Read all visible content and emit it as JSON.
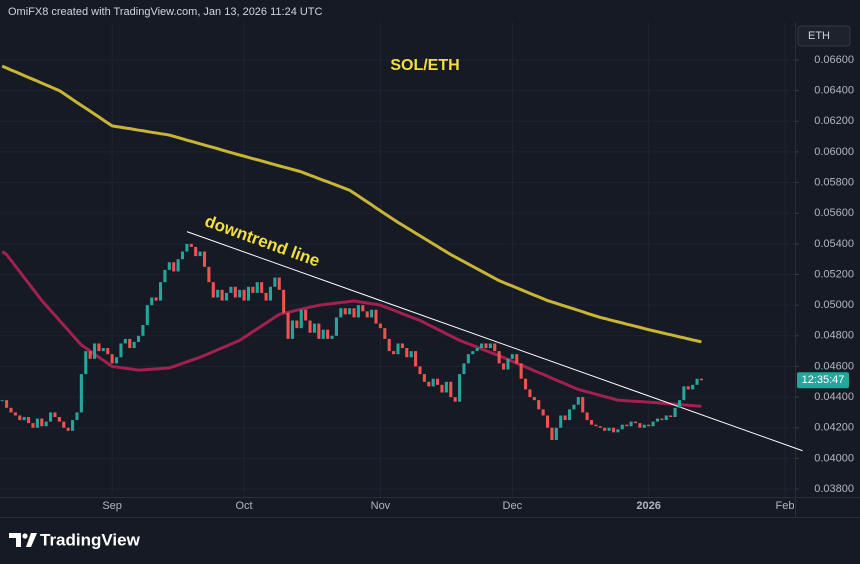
{
  "header": {
    "credit": "OmiFX8 created with TradingView.com, Jan 13, 2026 11:24 UTC",
    "logo": "TradingView"
  },
  "chart_data": {
    "type": "candlestick",
    "title": "SOL/ETH",
    "currency": "ETH",
    "countdown": "12:35:47",
    "up_color": "#26a69a",
    "down_color": "#ef5350",
    "grid": true,
    "categories": [
      null,
      null,
      null,
      null,
      null,
      null,
      null,
      null,
      null,
      null,
      null,
      null,
      null,
      null,
      null,
      null,
      null,
      null,
      null,
      null,
      null,
      null,
      null,
      null,
      null,
      "Sep",
      null,
      null,
      null,
      null,
      null,
      null,
      null,
      null,
      null,
      null,
      null,
      null,
      null,
      null,
      null,
      null,
      null,
      null,
      null,
      null,
      null,
      null,
      null,
      null,
      null,
      null,
      null,
      null,
      null,
      "Oct",
      null,
      null,
      null,
      null,
      null,
      null,
      null,
      null,
      null,
      null,
      null,
      null,
      null,
      null,
      null,
      null,
      null,
      null,
      null,
      null,
      null,
      null,
      null,
      null,
      null,
      null,
      null,
      null,
      null,
      null,
      "Nov",
      null,
      null,
      null,
      null,
      null,
      null,
      null,
      null,
      null,
      null,
      null,
      null,
      null,
      null,
      null,
      null,
      null,
      null,
      null,
      null,
      null,
      null,
      null,
      null,
      null,
      null,
      null,
      null,
      null,
      "Dec",
      null,
      null,
      null,
      null,
      null,
      null,
      null,
      null,
      null,
      null,
      null,
      null,
      null,
      null,
      null,
      null,
      null,
      null,
      null,
      null,
      null,
      null,
      null,
      null,
      null,
      null,
      null,
      null,
      null,
      null,
      "2026",
      null,
      null,
      null,
      null,
      null,
      null,
      null,
      null,
      null,
      null,
      null,
      null,
      null,
      null,
      null,
      null,
      null,
      null,
      null,
      null,
      null,
      null,
      null,
      null,
      null,
      null,
      null,
      null,
      null,
      null,
      "Feb",
      null,
      null
    ],
    "values": [
      0.0438,
      0.0433,
      0.043,
      0.0428,
      0.0425,
      0.0427,
      0.0423,
      0.042,
      0.0426,
      0.0421,
      0.0424,
      0.043,
      0.0427,
      0.0424,
      0.042,
      0.0418,
      0.0425,
      0.043,
      0.0455,
      0.047,
      0.0465,
      0.0475,
      0.047,
      0.0472,
      0.0468,
      0.0462,
      0.0466,
      0.0475,
      0.0478,
      0.0472,
      0.0476,
      0.048,
      0.0487,
      0.05,
      0.0505,
      0.0503,
      0.0515,
      0.0523,
      0.0528,
      0.0522,
      0.053,
      0.0535,
      0.054,
      0.0538,
      0.0532,
      0.0535,
      0.0525,
      0.0515,
      0.0505,
      0.051,
      0.0503,
      0.0508,
      0.0512,
      0.0505,
      0.051,
      0.0503,
      0.0512,
      0.0508,
      0.0515,
      0.0508,
      0.0503,
      0.0512,
      0.0518,
      0.051,
      0.0495,
      0.0478,
      0.049,
      0.0485,
      0.0497,
      0.049,
      0.0482,
      0.0488,
      0.0478,
      0.0484,
      0.0478,
      0.048,
      0.0492,
      0.0498,
      0.0494,
      0.0498,
      0.0492,
      0.05,
      0.0496,
      0.0492,
      0.0497,
      0.0488,
      0.0485,
      0.0478,
      0.047,
      0.0468,
      0.0475,
      0.0472,
      0.0466,
      0.047,
      0.046,
      0.0455,
      0.045,
      0.0447,
      0.0452,
      0.0448,
      0.0443,
      0.045,
      0.044,
      0.0437,
      0.0455,
      0.0462,
      0.0468,
      0.047,
      0.0472,
      0.0475,
      0.0472,
      0.0475,
      0.047,
      0.0462,
      0.0458,
      0.0465,
      0.0468,
      0.0462,
      0.0452,
      0.0445,
      0.044,
      0.0438,
      0.0432,
      0.0428,
      0.042,
      0.0412,
      0.042,
      0.0428,
      0.0425,
      0.0432,
      0.0435,
      0.044,
      0.043,
      0.0425,
      0.0422,
      0.0421,
      0.042,
      0.0418,
      0.042,
      0.0417,
      0.0419,
      0.0422,
      0.0421,
      0.0424,
      0.0423,
      0.042,
      0.0422,
      0.0421,
      0.0424,
      0.0426,
      0.0425,
      0.0428,
      0.0427,
      0.0433,
      0.0438,
      0.0447,
      0.0445,
      0.0448,
      0.0452,
      0.0451,
      null,
      null,
      null,
      null,
      null,
      null,
      null,
      null,
      null,
      null,
      null,
      null,
      null,
      null,
      null,
      null,
      null,
      null,
      null,
      null,
      null
    ],
    "series": [
      {
        "color": "#c9b535",
        "values": [
          0.0656,
          0.06548,
          0.06535,
          0.06523,
          0.06511,
          0.06498,
          0.06486,
          0.06474,
          0.06462,
          0.06449,
          0.06437,
          0.06425,
          0.06412,
          0.064,
          0.06381,
          0.06362,
          0.06342,
          0.06323,
          0.06304,
          0.06285,
          0.06266,
          0.06247,
          0.06228,
          0.06208,
          0.06189,
          0.0617,
          0.06165,
          0.06161,
          0.06156,
          0.06152,
          0.06147,
          0.06142,
          0.06138,
          0.06133,
          0.06128,
          0.06124,
          0.06119,
          0.06115,
          0.0611,
          0.06102,
          0.06094,
          0.06086,
          0.06077,
          0.06069,
          0.06061,
          0.06053,
          0.06045,
          0.06037,
          0.06029,
          0.06021,
          0.06012,
          0.06004,
          0.05996,
          0.05988,
          0.0598,
          0.05972,
          0.05964,
          0.05956,
          0.05949,
          0.05941,
          0.05933,
          0.05925,
          0.05917,
          0.05909,
          0.05901,
          0.05894,
          0.05886,
          0.05878,
          0.0587,
          0.05859,
          0.05848,
          0.05837,
          0.05826,
          0.05815,
          0.05805,
          0.05794,
          0.05783,
          0.05772,
          0.05761,
          0.0575,
          0.05731,
          0.05712,
          0.05693,
          0.05674,
          0.05655,
          0.05635,
          0.05616,
          0.05597,
          0.05578,
          0.05559,
          0.0554,
          0.05523,
          0.05505,
          0.05488,
          0.0547,
          0.05453,
          0.05435,
          0.05418,
          0.054,
          0.05383,
          0.05365,
          0.05348,
          0.0533,
          0.05315,
          0.05299,
          0.05284,
          0.05268,
          0.05253,
          0.05237,
          0.05222,
          0.05206,
          0.05191,
          0.05175,
          0.0516,
          0.05148,
          0.05136,
          0.05125,
          0.05113,
          0.05101,
          0.05089,
          0.05077,
          0.05065,
          0.05054,
          0.05042,
          0.0503,
          0.05021,
          0.05012,
          0.05002,
          0.04993,
          0.04984,
          0.04975,
          0.04966,
          0.04957,
          0.04947,
          0.04938,
          0.04929,
          0.0492,
          0.04913,
          0.04905,
          0.04898,
          0.04891,
          0.04884,
          0.04876,
          0.04869,
          0.04862,
          0.04855,
          0.04847,
          0.0484,
          0.04833,
          0.04827,
          0.0482,
          0.04813,
          0.04807,
          0.048,
          0.04793,
          0.04787,
          0.0478,
          0.04773,
          0.04767,
          0.0476,
          null,
          null,
          null,
          null,
          null,
          null,
          null,
          null,
          null,
          null,
          null,
          null,
          null,
          null,
          null,
          null,
          null,
          null,
          null,
          null,
          null
        ]
      },
      {
        "color": "#a3204f",
        "values": [
          0.0535,
          0.0533,
          0.05293,
          0.05255,
          0.05218,
          0.0518,
          0.05143,
          0.05105,
          0.05068,
          0.0503,
          0.04998,
          0.04966,
          0.04934,
          0.04901,
          0.04869,
          0.04837,
          0.04804,
          0.04772,
          0.0474,
          0.0472,
          0.047,
          0.0468,
          0.0466,
          0.0464,
          0.0462,
          0.046,
          0.04596,
          0.04592,
          0.04588,
          0.04584,
          0.0458,
          0.04576,
          0.04578,
          0.0458,
          0.04582,
          0.04584,
          0.04586,
          0.04588,
          0.0459,
          0.046,
          0.0461,
          0.0462,
          0.0463,
          0.0464,
          0.0465,
          0.0466,
          0.04672,
          0.04684,
          0.04697,
          0.04709,
          0.04721,
          0.04733,
          0.04746,
          0.04758,
          0.0477,
          0.04789,
          0.04808,
          0.04827,
          0.04846,
          0.04864,
          0.04883,
          0.04902,
          0.04921,
          0.0494,
          0.04947,
          0.04953,
          0.0496,
          0.04967,
          0.04973,
          0.0498,
          0.04987,
          0.04993,
          0.05,
          0.05003,
          0.05007,
          0.0501,
          0.05014,
          0.05017,
          0.0502,
          0.05024,
          0.05027,
          0.05023,
          0.05018,
          0.05014,
          0.05009,
          0.05005,
          0.05,
          0.04989,
          0.04978,
          0.04967,
          0.04956,
          0.04944,
          0.04933,
          0.04922,
          0.04911,
          0.049,
          0.04886,
          0.04871,
          0.04857,
          0.04842,
          0.04828,
          0.04813,
          0.04799,
          0.04784,
          0.0477,
          0.04759,
          0.04748,
          0.04737,
          0.04726,
          0.04714,
          0.04703,
          0.04692,
          0.04681,
          0.0467,
          0.04658,
          0.04646,
          0.04633,
          0.04621,
          0.04609,
          0.04597,
          0.04584,
          0.04572,
          0.0456,
          0.04548,
          0.04536,
          0.04523,
          0.04511,
          0.04499,
          0.04487,
          0.04474,
          0.04462,
          0.0445,
          0.04442,
          0.04434,
          0.04427,
          0.04419,
          0.04411,
          0.04403,
          0.04396,
          0.04388,
          0.0438,
          0.04378,
          0.04376,
          0.04374,
          0.04373,
          0.04371,
          0.04369,
          0.04367,
          0.04365,
          0.04363,
          0.0436,
          0.04358,
          0.04356,
          0.04354,
          0.04351,
          0.04349,
          0.04347,
          0.04345,
          0.04342,
          0.0434,
          null,
          null,
          null,
          null,
          null,
          null,
          null,
          null,
          null,
          null,
          null,
          null,
          null,
          null,
          null,
          null,
          null,
          null,
          null,
          null,
          null
        ]
      }
    ],
    "trendline": {
      "text": "downtrend line",
      "color": "#ffffff",
      "values": [
        null,
        null,
        null,
        null,
        null,
        null,
        null,
        null,
        null,
        null,
        null,
        null,
        null,
        null,
        null,
        null,
        null,
        null,
        null,
        null,
        null,
        null,
        null,
        null,
        null,
        null,
        null,
        null,
        null,
        null,
        null,
        null,
        null,
        null,
        null,
        null,
        null,
        null,
        null,
        null,
        null,
        null,
        0.0548,
        null,
        null,
        null,
        null,
        null,
        null,
        null,
        null,
        null,
        null,
        null,
        null,
        null,
        null,
        null,
        null,
        null,
        null,
        null,
        null,
        null,
        null,
        null,
        null,
        null,
        null,
        null,
        null,
        null,
        null,
        null,
        null,
        null,
        null,
        null,
        null,
        null,
        null,
        null,
        null,
        null,
        null,
        null,
        null,
        null,
        null,
        null,
        null,
        null,
        null,
        null,
        null,
        null,
        null,
        null,
        null,
        null,
        null,
        null,
        null,
        null,
        null,
        null,
        null,
        null,
        null,
        null,
        null,
        null,
        null,
        null,
        null,
        null,
        null,
        null,
        null,
        null,
        null,
        null,
        null,
        null,
        null,
        null,
        null,
        null,
        null,
        null,
        null,
        null,
        null,
        null,
        null,
        null,
        null,
        null,
        null,
        null,
        null,
        null,
        null,
        null,
        null,
        null,
        null,
        null,
        null,
        null,
        null,
        null,
        null,
        null,
        null,
        null,
        null,
        null,
        null,
        null,
        null,
        null,
        null,
        null,
        null,
        null,
        null,
        null,
        null,
        null,
        null,
        null,
        null,
        null,
        null,
        null,
        null,
        null,
        null,
        null,
        null,
        null,
        0.0405
      ]
    },
    "ylim": [
      0.03748,
      0.06848
    ],
    "yticks": [
      {
        "value": 0.038,
        "label": "0.03800"
      },
      {
        "value": 0.04,
        "label": "0.04000"
      },
      {
        "value": 0.042,
        "label": "0.04200"
      },
      {
        "value": 0.044,
        "label": "0.04400"
      },
      {
        "value": 0.046,
        "label": "0.04600"
      },
      {
        "value": 0.048,
        "label": "0.04800"
      },
      {
        "value": 0.05,
        "label": "0.05000"
      },
      {
        "value": 0.052,
        "label": "0.05200"
      },
      {
        "value": 0.054,
        "label": "0.05400"
      },
      {
        "value": 0.056,
        "label": "0.05600"
      },
      {
        "value": 0.058,
        "label": "0.05800"
      },
      {
        "value": 0.06,
        "label": "0.06000"
      },
      {
        "value": 0.062,
        "label": "0.06200"
      },
      {
        "value": 0.064,
        "label": "0.06400"
      },
      {
        "value": 0.066,
        "label": "0.06600"
      }
    ]
  }
}
